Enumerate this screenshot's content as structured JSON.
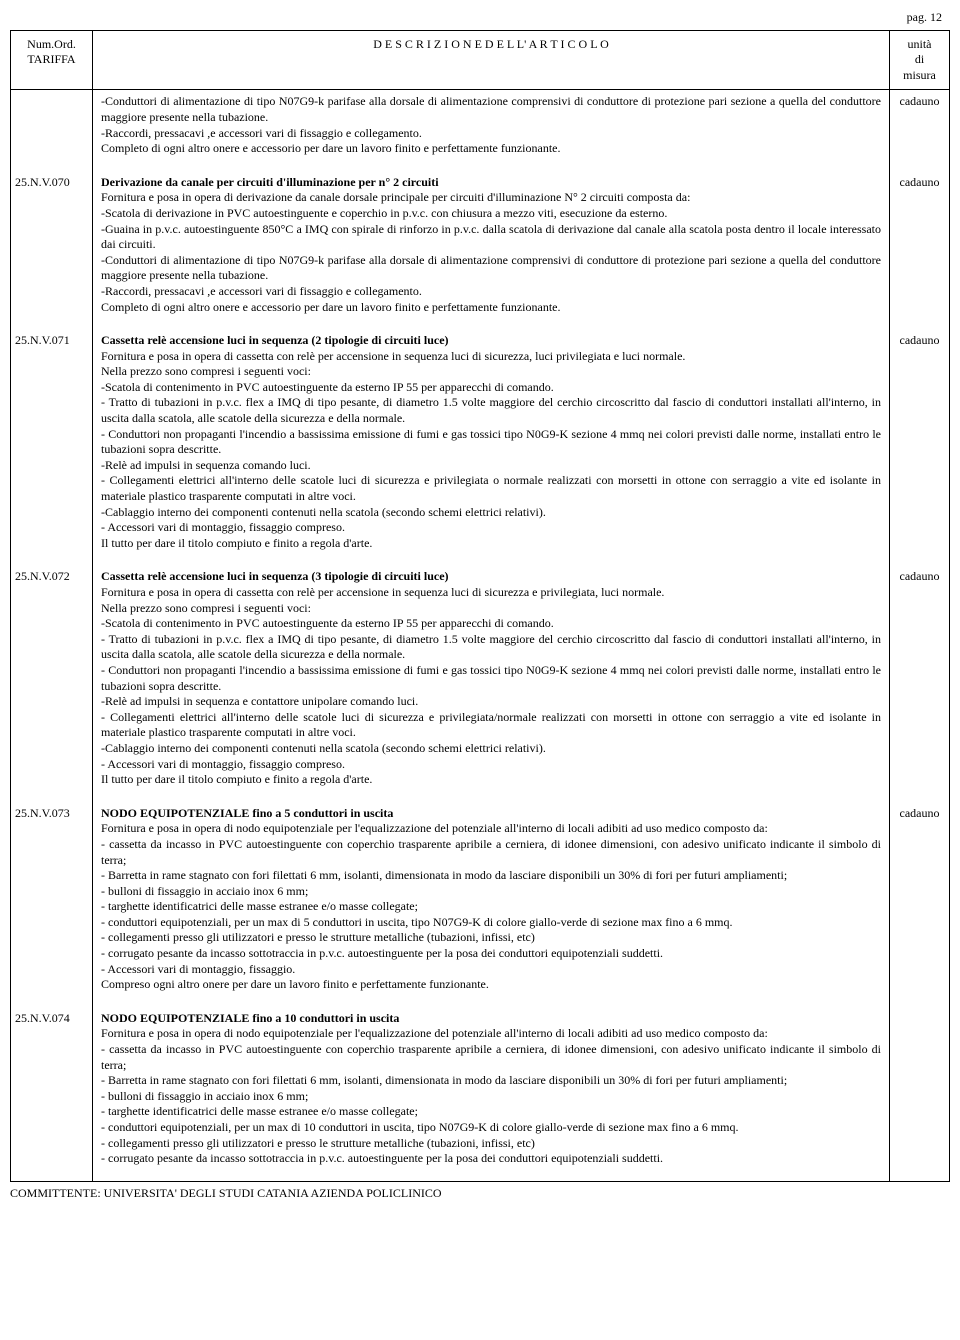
{
  "page_label": "pag. 12",
  "header": {
    "col1_line1": "Num.Ord.",
    "col1_line2": "TARIFFA",
    "col2": "D E S C R I Z I O N E   D E L L' A R T I C O L O",
    "col3_line1": "unità",
    "col3_line2": "di",
    "col3_line3": "misura"
  },
  "intro_lines": [
    "-Conduttori di alimentazione di tipo N07G9-k parifase alla dorsale di alimentazione comprensivi di conduttore di protezione pari sezione a quella del conduttore maggiore presente nella tubazione.",
    "-Raccordi, pressacavi ,e accessori vari di fissaggio e collegamento.",
    "Completo di ogni altro onere e accessorio per dare un lavoro finito e perfettamente funzionante."
  ],
  "intro_unit": "cadauno",
  "entries": [
    {
      "code": "25.N.V.070",
      "title": "Derivazione da canale per circuiti d'illuminazione per n° 2 circuiti",
      "lines": [
        "Fornitura e posa in opera di derivazione da canale dorsale principale per circuiti d'illuminazione N° 2 circuiti composta da:",
        "-Scatola di derivazione in PVC autoestinguente e coperchio in p.v.c. con chiusura a mezzo viti, esecuzione da esterno.",
        "-Guaina in p.v.c. autoestinguente 850°C a IMQ con spirale di rinforzo in p.v.c. dalla scatola di derivazione dal canale alla scatola posta dentro il locale interessato dai circuiti.",
        "-Conduttori di alimentazione di tipo N07G9-k parifase alla dorsale di alimentazione comprensivi di conduttore di protezione pari sezione a quella del conduttore maggiore presente nella tubazione.",
        "-Raccordi, pressacavi ,e accessori vari di fissaggio e collegamento.",
        "Completo di ogni altro onere e accessorio per dare un lavoro finito e perfettamente funzionante."
      ],
      "unit": "cadauno"
    },
    {
      "code": "25.N.V.071",
      "title": "Cassetta relè accensione luci in sequenza (2 tipologie di circuiti luce)",
      "lines": [
        "Fornitura e posa in opera di cassetta con relè per accensione in sequenza luci di sicurezza, luci privilegiata e luci normale.",
        "Nella prezzo sono compresi i seguenti voci:",
        "-Scatola di contenimento in PVC autoestinguente da esterno IP 55 per apparecchi di comando.",
        "- Tratto di  tubazioni in p.v.c. flex a IMQ di tipo pesante, di diametro 1.5 volte maggiore del cerchio circoscritto dal fascio di conduttori installati all'interno, in uscita dalla scatola, alle scatole della sicurezza e della normale.",
        "- Conduttori non propaganti l'incendio a bassissima emissione di fumi e gas tossici tipo N0G9-K sezione 4 mmq nei colori previsti dalle norme, installati entro le tubazioni sopra descritte.",
        "-Relè ad impulsi in sequenza comando luci.",
        "- Collegamenti elettrici all'interno delle scatole luci di sicurezza e privilegiata o normale  realizzati con morsetti in ottone con serraggio a vite ed isolante in materiale plastico trasparente computati in altre voci.",
        "-Cablaggio interno dei componenti contenuti nella scatola (secondo schemi elettrici relativi).",
        "- Accessori vari di montaggio, fissaggio compreso.",
        "Il tutto per dare il titolo compiuto e finito a regola d'arte."
      ],
      "unit": "cadauno"
    },
    {
      "code": "25.N.V.072",
      "title": "Cassetta relè accensione luci in sequenza (3 tipologie di circuiti luce)",
      "lines": [
        "Fornitura e posa in opera di cassetta con relè per accensione in sequenza luci di sicurezza e privilegiata, luci normale.",
        "Nella prezzo sono compresi i seguenti voci:",
        "-Scatola di contenimento in PVC autoestinguente da esterno IP 55 per apparecchi di comando.",
        "- Tratto di  tubazioni in p.v.c. flex a IMQ di tipo pesante, di diametro 1.5 volte maggiore del cerchio circoscritto dal fascio di conduttori installati all'interno, in uscita dalla scatola, alle scatole della sicurezza e della normale.",
        "- Conduttori non propaganti l'incendio a bassissima emissione di fumi e gas tossici tipo N0G9-K sezione 4 mmq nei colori previsti dalle norme, installati entro le tubazioni sopra descritte.",
        "-Relè ad impulsi in sequenza e contattore unipolare comando luci.",
        "- Collegamenti elettrici all'interno delle scatole luci di sicurezza e privilegiata/normale realizzati con morsetti in ottone con serraggio a vite ed isolante in materiale plastico trasparente computati in altre voci.",
        "-Cablaggio interno dei componenti contenuti nella scatola (secondo schemi elettrici relativi).",
        "- Accessori vari di montaggio, fissaggio compreso.",
        "Il tutto per dare il titolo compiuto e finito a regola d'arte."
      ],
      "unit": "cadauno"
    },
    {
      "code": "25.N.V.073",
      "title": "NODO EQUIPOTENZIALE fino a 5 conduttori in uscita",
      "lines": [
        "Fornitura e posa in opera di nodo equipotenziale per l'equalizzazione del potenziale all'interno di locali adibiti ad uso medico composto da:",
        "- cassetta da incasso in PVC autoestinguente con coperchio trasparente apribile a cerniera, di idonee dimensioni, con adesivo unificato indicante il simbolo di terra;",
        "- Barretta in rame stagnato con fori filettati 6 mm, isolanti, dimensionata in modo da lasciare disponibili un 30% di fori per futuri ampliamenti;",
        "- bulloni di fissaggio in acciaio inox 6 mm;",
        "- targhette identificatrici delle masse estranee e/o masse collegate;",
        "- conduttori equipotenziali, per un max di 5 conduttori in uscita, tipo N07G9-K di colore giallo-verde di sezione max fino a 6 mmq.",
        "- collegamenti presso gli utilizzatori e presso le strutture metalliche (tubazioni, infissi, etc)",
        "- corrugato pesante da incasso sottotraccia in p.v.c. autoestinguente per la posa dei conduttori equipotenziali suddetti.",
        "- Accessori vari di montaggio, fissaggio.",
        "Compreso ogni altro onere per dare un lavoro finito e perfettamente funzionante."
      ],
      "unit": "cadauno"
    },
    {
      "code": "25.N.V.074",
      "title": "NODO EQUIPOTENZIALE fino a 10 conduttori in uscita",
      "lines": [
        "Fornitura e posa in opera di nodo equipotenziale per l'equalizzazione del potenziale all'interno di locali adibiti ad uso medico composto da:",
        "- cassetta da incasso in PVC autoestinguente con coperchio trasparente apribile a cerniera, di idonee dimensioni, con adesivo unificato indicante il simbolo di terra;",
        "- Barretta in rame stagnato con fori filettati 6 mm, isolanti, dimensionata in modo da lasciare disponibili un 30% di fori per futuri ampliamenti;",
        "- bulloni di fissaggio in acciaio inox 6 mm;",
        "- targhette identificatrici delle masse estranee e/o masse collegate;",
        "- conduttori equipotenziali, per un max di 10 conduttori in uscita, tipo N07G9-K di colore giallo-verde di sezione max fino a 6 mmq.",
        "- collegamenti presso gli utilizzatori e presso le strutture metalliche (tubazioni, infissi, etc)",
        "- corrugato pesante da incasso sottotraccia in p.v.c. autoestinguente per la posa dei conduttori equipotenziali suddetti."
      ],
      "unit": ""
    }
  ],
  "footer": "COMMITTENTE: UNIVERSITA' DEGLI STUDI CATANIA AZIENDA POLICLINICO"
}
